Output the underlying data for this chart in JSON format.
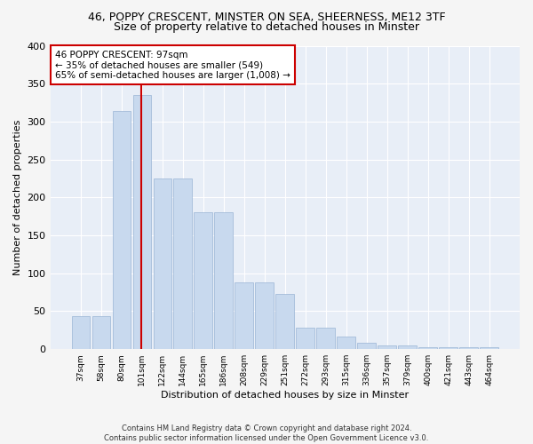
{
  "title": "46, POPPY CRESCENT, MINSTER ON SEA, SHEERNESS, ME12 3TF",
  "subtitle": "Size of property relative to detached houses in Minster",
  "xlabel": "Distribution of detached houses by size in Minster",
  "ylabel": "Number of detached properties",
  "categories": [
    "37sqm",
    "58sqm",
    "80sqm",
    "101sqm",
    "122sqm",
    "144sqm",
    "165sqm",
    "186sqm",
    "208sqm",
    "229sqm",
    "251sqm",
    "272sqm",
    "293sqm",
    "315sqm",
    "336sqm",
    "357sqm",
    "379sqm",
    "400sqm",
    "421sqm",
    "443sqm",
    "464sqm"
  ],
  "bar_heights": [
    44,
    44,
    314,
    335,
    225,
    225,
    180,
    180,
    88,
    88,
    73,
    28,
    28,
    17,
    9,
    5,
    5,
    3,
    3,
    3,
    3
  ],
  "bar_color": "#c8d9ee",
  "bar_edge_color": "#9ab5d4",
  "annotation_line1": "46 POPPY CRESCENT: 97sqm",
  "annotation_line2": "← 35% of detached houses are smaller (549)",
  "annotation_line3": "65% of semi-detached houses are larger (1,008) →",
  "annotation_box_facecolor": "#ffffff",
  "annotation_box_edgecolor": "#cc0000",
  "vertical_line_color": "#cc0000",
  "background_color": "#e8eef7",
  "grid_color": "#ffffff",
  "fig_facecolor": "#f5f5f5",
  "ylim": [
    0,
    400
  ],
  "prop_bar_index": 3,
  "title_fontsize": 9,
  "subtitle_fontsize": 9,
  "footer": "Contains HM Land Registry data © Crown copyright and database right 2024.\nContains public sector information licensed under the Open Government Licence v3.0."
}
